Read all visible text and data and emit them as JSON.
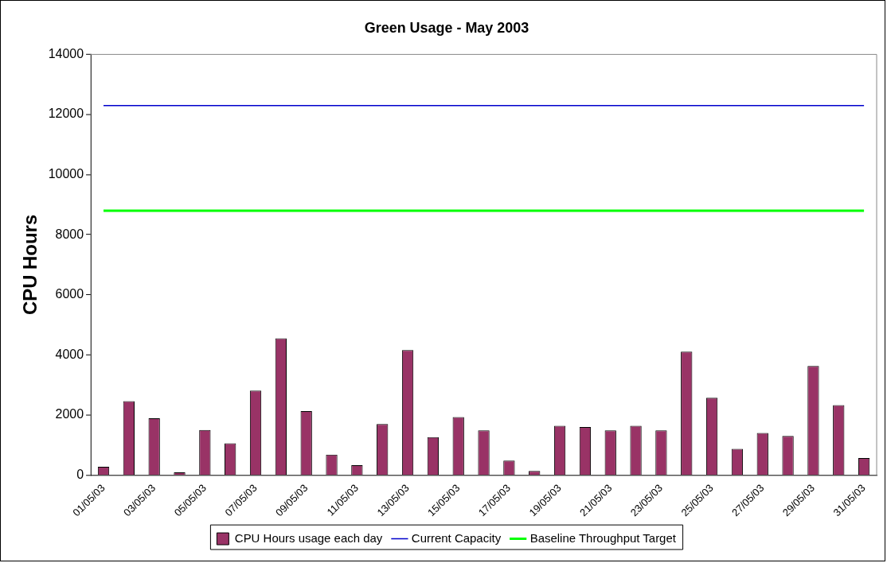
{
  "chart_data": {
    "type": "bar",
    "title": "Green Usage - May 2003",
    "ylabel": "CPU Hours",
    "categories": [
      "01/05/03",
      null,
      "03/05/03",
      null,
      "05/05/03",
      null,
      "07/05/03",
      null,
      "09/05/03",
      null,
      "11/05/03",
      null,
      "13/05/03",
      null,
      "15/05/03",
      null,
      "17/05/03",
      null,
      "19/05/03",
      null,
      "21/05/03",
      null,
      "23/05/03",
      null,
      "25/05/03",
      null,
      "27/05/03",
      null,
      "29/05/03",
      null,
      "31/05/03"
    ],
    "series": [
      {
        "name": "CPU Hours usage each day",
        "color": "#993366",
        "values": [
          280,
          2460,
          1890,
          90,
          1500,
          1060,
          2810,
          4550,
          2130,
          680,
          330,
          1700,
          4160,
          1260,
          1930,
          1490,
          480,
          140,
          1640,
          1600,
          1490,
          1640,
          1490,
          4110,
          2570,
          870,
          1400,
          1300,
          3630,
          2330,
          570
        ]
      },
      {
        "name": "Current Capacity",
        "type": "line",
        "color": "#0000cc",
        "values": [
          12300,
          12300,
          12300,
          12300,
          12300,
          12300,
          12300,
          12300,
          12300,
          12300,
          12300,
          12300,
          12300,
          12300,
          12300,
          12300,
          12300,
          12300,
          12300,
          12300,
          12300,
          12300,
          12300,
          12300,
          12300,
          12300,
          12300,
          12300,
          12300,
          12300,
          12300
        ]
      },
      {
        "name": "Baseline Throughput Target",
        "type": "line",
        "color": "#00ff00",
        "values": [
          8800,
          8800,
          8800,
          8800,
          8800,
          8800,
          8800,
          8800,
          8800,
          8800,
          8800,
          8800,
          8800,
          8800,
          8800,
          8800,
          8800,
          8800,
          8800,
          8800,
          8800,
          8800,
          8800,
          8800,
          8800,
          8800,
          8800,
          8800,
          8800,
          8800,
          8800
        ]
      }
    ],
    "ylim": [
      0,
      14000
    ],
    "yticks": [
      0,
      2000,
      4000,
      6000,
      8000,
      10000,
      12000,
      14000
    ],
    "grid": false,
    "legend": "bottom",
    "marker": "none"
  }
}
